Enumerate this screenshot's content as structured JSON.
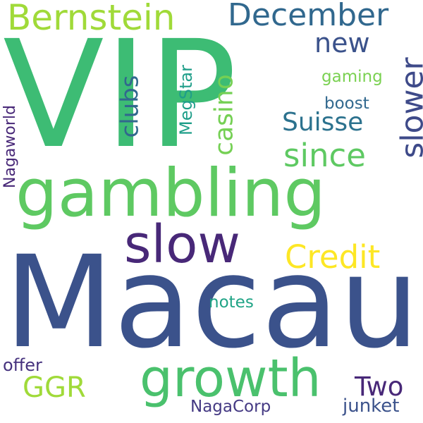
{
  "words": {
    "w01": {
      "text": "VIP",
      "color": "#3dbc74"
    },
    "w02": {
      "text": "Macau",
      "color": "#3b528b"
    },
    "w03": {
      "text": "gambling",
      "color": "#5ec962"
    },
    "w04": {
      "text": "slow",
      "color": "#482878"
    },
    "w05": {
      "text": "growth",
      "color": "#4ac16d"
    },
    "w06": {
      "text": "Bernstein",
      "color": "#a0da39"
    },
    "w07": {
      "text": "December",
      "color": "#31688e"
    },
    "w08": {
      "text": "Credit",
      "color": "#fde725"
    },
    "w09": {
      "text": "since",
      "color": "#5ec962"
    },
    "w10": {
      "text": "Suisse",
      "color": "#2c728e"
    },
    "w11": {
      "text": "slower",
      "color": "#3e4a89"
    },
    "w12": {
      "text": "new",
      "color": "#3b528b"
    },
    "w13": {
      "text": "casino",
      "color": "#75d054"
    },
    "w14": {
      "text": "clubs",
      "color": "#31688e"
    },
    "w15": {
      "text": "MegStar",
      "color": "#1f9e89"
    },
    "w16": {
      "text": "gaming",
      "color": "#7ad151"
    },
    "w17": {
      "text": "boost",
      "color": "#31688e"
    },
    "w18": {
      "text": "Nagaworld",
      "color": "#482878"
    },
    "w19": {
      "text": "notes",
      "color": "#20a486"
    },
    "w20": {
      "text": "GGR",
      "color": "#a0da39"
    },
    "w21": {
      "text": "Two",
      "color": "#482878"
    },
    "w22": {
      "text": "offer",
      "color": "#46327e"
    },
    "w23": {
      "text": "NagaCorp",
      "color": "#443983"
    },
    "w24": {
      "text": "junket",
      "color": "#3b528b"
    }
  }
}
